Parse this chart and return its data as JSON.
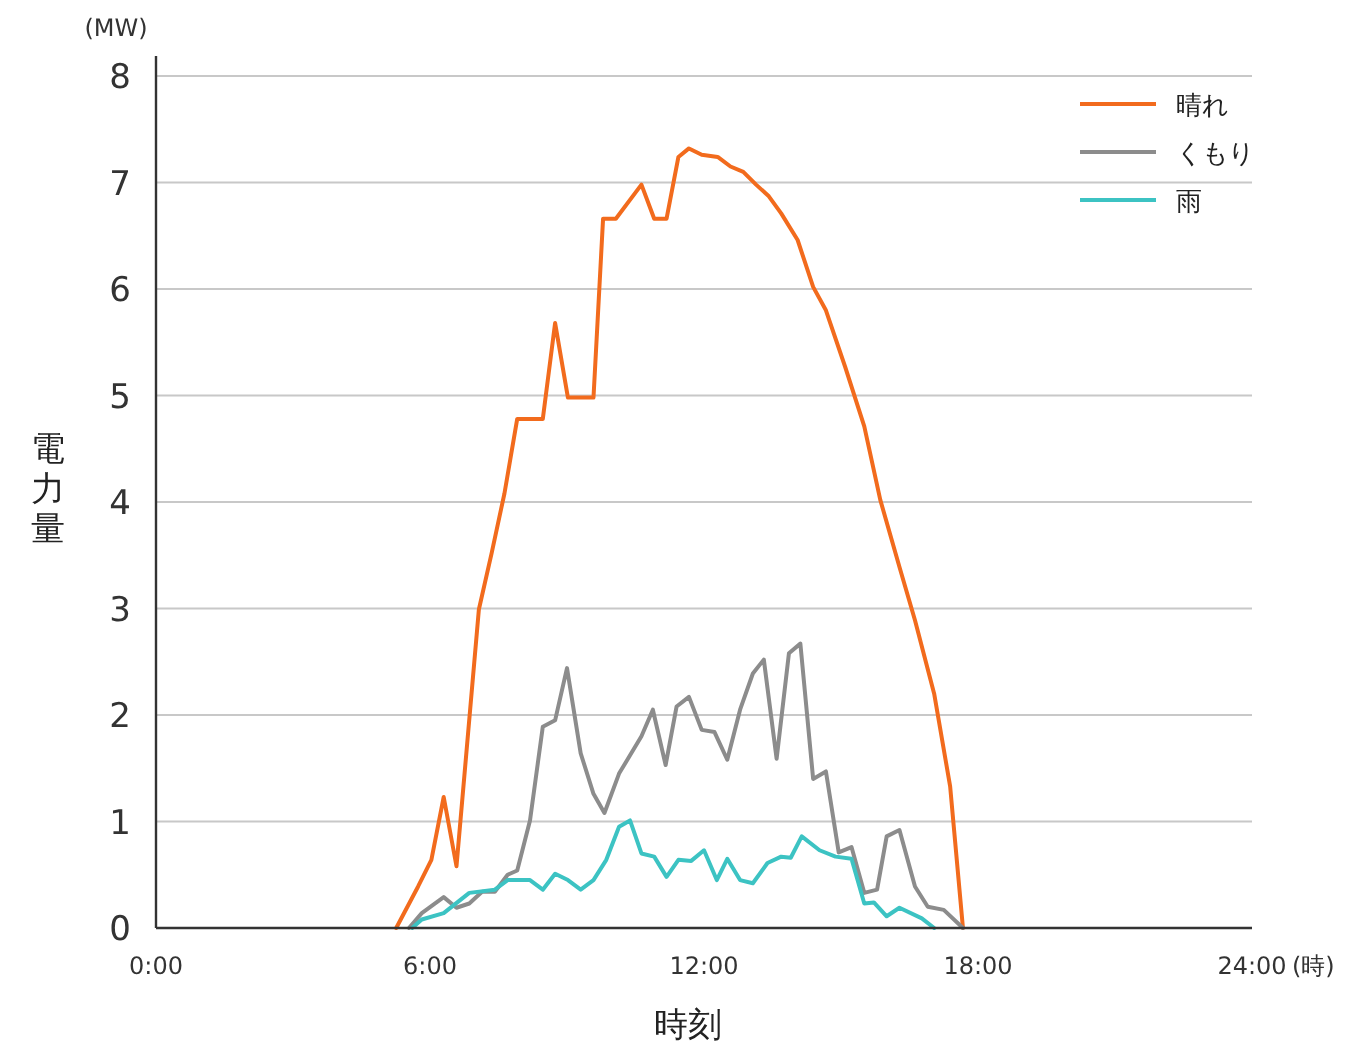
{
  "chart_data": {
    "type": "line",
    "xlabel": "時刻",
    "ylabel": "電力量",
    "annotations": [
      "(MW)",
      "(時)"
    ],
    "xlim": [
      0,
      24
    ],
    "ylim": [
      0,
      8
    ],
    "xticks": [
      {
        "value": 0,
        "label": "0:00"
      },
      {
        "value": 6,
        "label": "6:00"
      },
      {
        "value": 12,
        "label": "12:00"
      },
      {
        "value": 18,
        "label": "18:00"
      },
      {
        "value": 24,
        "label": "24:00"
      }
    ],
    "yticks": [
      0,
      1,
      2,
      3,
      4,
      5,
      6,
      7,
      8
    ],
    "grid": "y",
    "legend": "top right",
    "marker": "none",
    "line_style": "solid",
    "series": [
      {
        "name": "晴れ",
        "color": "#f26b1d",
        "x": [
          5.26,
          5.74,
          6.03,
          6.3,
          6.58,
          7.07,
          7.35,
          7.63,
          7.91,
          8.47,
          8.74,
          9.02,
          9.58,
          9.79,
          10.07,
          10.63,
          10.91,
          11.18,
          11.44,
          11.67,
          11.95,
          12.3,
          12.58,
          12.86,
          13.14,
          13.42,
          13.69,
          14.05,
          14.39,
          14.67,
          15.09,
          15.51,
          15.86,
          16.28,
          16.62,
          17.04,
          17.39,
          17.67
        ],
        "values": [
          0,
          0.39,
          0.64,
          1.23,
          0.58,
          2.99,
          3.52,
          4.08,
          4.78,
          4.78,
          5.68,
          4.98,
          4.98,
          6.66,
          6.66,
          6.98,
          6.66,
          6.66,
          7.24,
          7.32,
          7.26,
          7.24,
          7.15,
          7.1,
          6.98,
          6.87,
          6.71,
          6.46,
          6.02,
          5.8,
          5.27,
          4.71,
          4.02,
          3.39,
          2.89,
          2.2,
          1.33,
          0
        ]
      },
      {
        "name": "くもり",
        "color": "#8c8c8c",
        "x": [
          5.54,
          5.82,
          6.3,
          6.58,
          6.86,
          7.14,
          7.42,
          7.7,
          7.91,
          8.19,
          8.47,
          8.74,
          9.0,
          9.3,
          9.58,
          9.82,
          10.14,
          10.63,
          10.88,
          11.16,
          11.4,
          11.67,
          11.95,
          12.23,
          12.51,
          12.79,
          13.07,
          13.31,
          13.59,
          13.86,
          14.11,
          14.39,
          14.67,
          14.95,
          15.23,
          15.51,
          15.79,
          16.0,
          16.28,
          16.62,
          16.9,
          17.25,
          17.67
        ],
        "values": [
          0,
          0.14,
          0.29,
          0.19,
          0.23,
          0.34,
          0.34,
          0.5,
          0.54,
          1.01,
          1.89,
          1.95,
          2.44,
          1.64,
          1.26,
          1.08,
          1.45,
          1.8,
          2.05,
          1.53,
          2.08,
          2.17,
          1.86,
          1.84,
          1.58,
          2.05,
          2.39,
          2.52,
          1.59,
          2.58,
          2.67,
          1.4,
          1.47,
          0.71,
          0.76,
          0.33,
          0.36,
          0.86,
          0.92,
          0.39,
          0.2,
          0.17,
          0
        ]
      },
      {
        "name": "雨",
        "color": "#3cc3c3",
        "x": [
          5.61,
          5.82,
          6.3,
          6.86,
          7.42,
          7.7,
          8.19,
          8.47,
          8.74,
          9.02,
          9.3,
          9.58,
          9.86,
          10.14,
          10.38,
          10.63,
          10.91,
          11.18,
          11.44,
          11.72,
          12.0,
          12.28,
          12.51,
          12.79,
          13.07,
          13.39,
          13.69,
          13.9,
          14.14,
          14.53,
          14.88,
          15.23,
          15.51,
          15.72,
          16.0,
          16.28,
          16.77,
          17.04
        ],
        "values": [
          0,
          0.08,
          0.14,
          0.33,
          0.36,
          0.45,
          0.45,
          0.36,
          0.51,
          0.45,
          0.36,
          0.45,
          0.64,
          0.95,
          1.01,
          0.7,
          0.67,
          0.48,
          0.64,
          0.63,
          0.73,
          0.45,
          0.65,
          0.45,
          0.42,
          0.61,
          0.67,
          0.66,
          0.86,
          0.73,
          0.67,
          0.65,
          0.23,
          0.24,
          0.11,
          0.19,
          0.09,
          0
        ]
      }
    ]
  }
}
